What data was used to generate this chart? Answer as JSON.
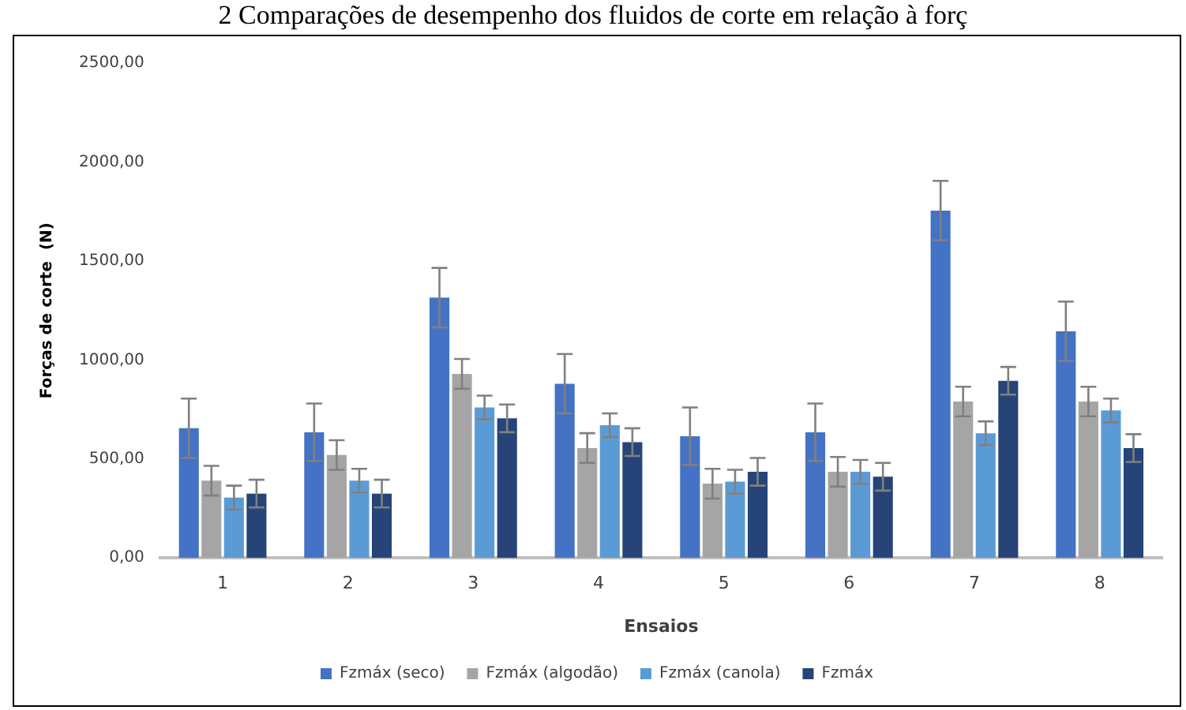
{
  "chart_data": {
    "type": "bar",
    "title": "2 Comparações de desempenho dos fluidos de corte em relação à forç",
    "xlabel": "Ensaios",
    "ylabel": "Forças de corte  (N)",
    "categories": [
      "1",
      "2",
      "3",
      "4",
      "5",
      "6",
      "7",
      "8"
    ],
    "series": [
      {
        "name": "Fzmáx (seco)",
        "color": "#4472c4",
        "values": [
          655,
          635,
          1315,
          880,
          615,
          635,
          1755,
          1145
        ],
        "errors": [
          150,
          145,
          150,
          150,
          145,
          145,
          150,
          150
        ]
      },
      {
        "name": "Fzmáx (algodão)",
        "color": "#a5a5a5",
        "values": [
          390,
          520,
          930,
          555,
          375,
          435,
          790,
          790
        ],
        "errors": [
          75,
          75,
          75,
          75,
          75,
          75,
          75,
          75
        ]
      },
      {
        "name": "Fzmáx (canola)",
        "color": "#5b9bd5",
        "values": [
          305,
          390,
          760,
          670,
          385,
          435,
          630,
          745
        ],
        "errors": [
          60,
          60,
          60,
          60,
          60,
          60,
          60,
          60
        ]
      },
      {
        "name": "Fzmáx",
        "color": "#264478",
        "values": [
          325,
          325,
          705,
          585,
          435,
          410,
          895,
          555
        ],
        "errors": [
          70,
          70,
          70,
          70,
          70,
          70,
          70,
          70
        ]
      }
    ],
    "ylim": [
      0,
      2500
    ],
    "yticks": [
      {
        "value": 0,
        "label": "0,00"
      },
      {
        "value": 500,
        "label": "500,00"
      },
      {
        "value": 1000,
        "label": "1000,00"
      },
      {
        "value": 1500,
        "label": "1500,00"
      },
      {
        "value": 2000,
        "label": "2000,00"
      },
      {
        "value": 2500,
        "label": "2500,00"
      }
    ],
    "grid": false,
    "legend": "bottom"
  }
}
